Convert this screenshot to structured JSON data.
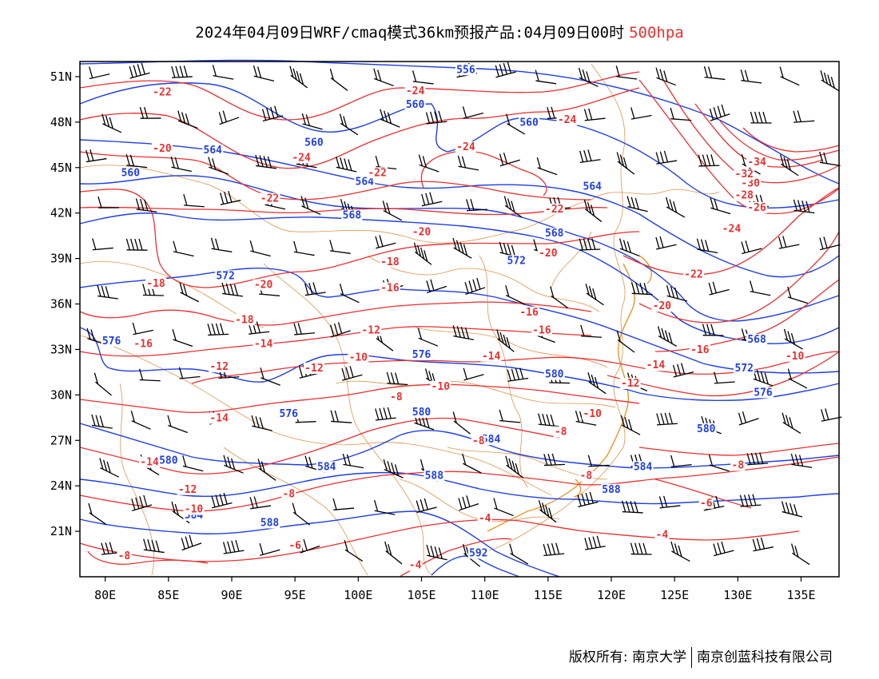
{
  "title": {
    "main": "2024年04月09日WRF/cmaq模式36km预报产品:04月09日00时",
    "level": "500hpa",
    "level_color": "#e83030"
  },
  "map": {
    "lon_range": [
      78,
      138
    ],
    "lat_range": [
      18,
      52
    ],
    "lon_ticks": [
      "80E",
      "85E",
      "90E",
      "95E",
      "100E",
      "105E",
      "110E",
      "115E",
      "120E",
      "125E",
      "130E",
      "135E"
    ],
    "lon_tick_values": [
      80,
      85,
      90,
      95,
      100,
      105,
      110,
      115,
      120,
      125,
      130,
      135
    ],
    "lat_ticks": [
      "21N",
      "24N",
      "27N",
      "30N",
      "33N",
      "36N",
      "39N",
      "42N",
      "45N",
      "48N",
      "51N"
    ],
    "lat_tick_values": [
      21,
      24,
      27,
      30,
      33,
      36,
      39,
      42,
      45,
      48,
      51
    ],
    "colors": {
      "height_contour": "#1f3fe0",
      "temperature_contour": "#e83030",
      "boundary": "#d98a3a",
      "wind_barb": "#000000"
    },
    "height_labels": [
      {
        "text": "556",
        "lon": 108.5,
        "lat": 51.3
      },
      {
        "text": "560",
        "lon": 104.5,
        "lat": 49.0
      },
      {
        "text": "560",
        "lon": 96.5,
        "lat": 46.5
      },
      {
        "text": "560",
        "lon": 113.5,
        "lat": 47.8
      },
      {
        "text": "560",
        "lon": 82.0,
        "lat": 44.5
      },
      {
        "text": "564",
        "lon": 88.5,
        "lat": 46.0
      },
      {
        "text": "564",
        "lon": 100.5,
        "lat": 43.9
      },
      {
        "text": "564",
        "lon": 118.5,
        "lat": 43.6
      },
      {
        "text": "568",
        "lon": 99.5,
        "lat": 41.7
      },
      {
        "text": "568",
        "lon": 115.5,
        "lat": 40.5
      },
      {
        "text": "568",
        "lon": 131.5,
        "lat": 33.5
      },
      {
        "text": "572",
        "lon": 89.5,
        "lat": 37.7
      },
      {
        "text": "572",
        "lon": 112.5,
        "lat": 38.7
      },
      {
        "text": "572",
        "lon": 130.5,
        "lat": 31.6
      },
      {
        "text": "576",
        "lon": 80.5,
        "lat": 33.4
      },
      {
        "text": "576",
        "lon": 94.5,
        "lat": 28.6
      },
      {
        "text": "576",
        "lon": 105.0,
        "lat": 32.5
      },
      {
        "text": "576",
        "lon": 132.0,
        "lat": 30.0
      },
      {
        "text": "580",
        "lon": 85.0,
        "lat": 25.5
      },
      {
        "text": "580",
        "lon": 105.0,
        "lat": 28.7
      },
      {
        "text": "580",
        "lon": 115.5,
        "lat": 31.2
      },
      {
        "text": "580",
        "lon": 127.5,
        "lat": 27.6
      },
      {
        "text": "584",
        "lon": 97.5,
        "lat": 25.1
      },
      {
        "text": "584",
        "lon": 110.5,
        "lat": 26.9
      },
      {
        "text": "584",
        "lon": 87.0,
        "lat": 21.9
      },
      {
        "text": "584",
        "lon": 122.5,
        "lat": 25.1
      },
      {
        "text": "588",
        "lon": 93.0,
        "lat": 21.4
      },
      {
        "text": "588",
        "lon": 106.0,
        "lat": 24.5
      },
      {
        "text": "588",
        "lon": 120.0,
        "lat": 23.6
      },
      {
        "text": "592",
        "lon": 109.5,
        "lat": 19.4
      }
    ],
    "temperature_labels": [
      {
        "text": "-22",
        "lon": 84.5,
        "lat": 49.8
      },
      {
        "text": "-24",
        "lon": 104.5,
        "lat": 49.9
      },
      {
        "text": "-24",
        "lon": 116.5,
        "lat": 48.0
      },
      {
        "text": "-24",
        "lon": 95.5,
        "lat": 45.5
      },
      {
        "text": "-24",
        "lon": 108.5,
        "lat": 46.2
      },
      {
        "text": "-20",
        "lon": 84.5,
        "lat": 46.1
      },
      {
        "text": "-22",
        "lon": 101.5,
        "lat": 44.5
      },
      {
        "text": "-22",
        "lon": 93.0,
        "lat": 42.8
      },
      {
        "text": "-22",
        "lon": 115.5,
        "lat": 42.1
      },
      {
        "text": "-20",
        "lon": 105.0,
        "lat": 40.6
      },
      {
        "text": "-20",
        "lon": 115.0,
        "lat": 39.2
      },
      {
        "text": "-18",
        "lon": 102.5,
        "lat": 38.6
      },
      {
        "text": "-18",
        "lon": 84.0,
        "lat": 37.2
      },
      {
        "text": "-20",
        "lon": 92.5,
        "lat": 37.1
      },
      {
        "text": "-16",
        "lon": 102.5,
        "lat": 36.9
      },
      {
        "text": "-16",
        "lon": 113.5,
        "lat": 35.3
      },
      {
        "text": "-16",
        "lon": 114.5,
        "lat": 34.1
      },
      {
        "text": "-18",
        "lon": 91.0,
        "lat": 34.8
      },
      {
        "text": "-14",
        "lon": 92.5,
        "lat": 33.2
      },
      {
        "text": "-16",
        "lon": 83.0,
        "lat": 33.2
      },
      {
        "text": "-12",
        "lon": 101.0,
        "lat": 34.1
      },
      {
        "text": "-10",
        "lon": 100.0,
        "lat": 32.3
      },
      {
        "text": "-12",
        "lon": 89.0,
        "lat": 31.7
      },
      {
        "text": "-12",
        "lon": 96.5,
        "lat": 31.6
      },
      {
        "text": "-14",
        "lon": 110.5,
        "lat": 32.4
      },
      {
        "text": "-8",
        "lon": 103.0,
        "lat": 29.7
      },
      {
        "text": "-10",
        "lon": 106.5,
        "lat": 30.4
      },
      {
        "text": "-14",
        "lon": 89.0,
        "lat": 28.3
      },
      {
        "text": "-8",
        "lon": 109.5,
        "lat": 26.8
      },
      {
        "text": "-8",
        "lon": 116.0,
        "lat": 27.4
      },
      {
        "text": "-10",
        "lon": 118.5,
        "lat": 28.6
      },
      {
        "text": "-12",
        "lon": 121.5,
        "lat": 30.6
      },
      {
        "text": "-14",
        "lon": 83.5,
        "lat": 25.4
      },
      {
        "text": "-12",
        "lon": 86.5,
        "lat": 23.6
      },
      {
        "text": "-8",
        "lon": 94.5,
        "lat": 23.3
      },
      {
        "text": "-10",
        "lon": 87.0,
        "lat": 22.3
      },
      {
        "text": "-8",
        "lon": 81.5,
        "lat": 19.2
      },
      {
        "text": "-6",
        "lon": 95.0,
        "lat": 19.9
      },
      {
        "text": "-4",
        "lon": 104.5,
        "lat": 18.6
      },
      {
        "text": "-4",
        "lon": 110.0,
        "lat": 21.7
      },
      {
        "text": "-8",
        "lon": 118.0,
        "lat": 24.5
      },
      {
        "text": "-6",
        "lon": 127.5,
        "lat": 22.7
      },
      {
        "text": "-4",
        "lon": 124.0,
        "lat": 20.6
      },
      {
        "text": "-8",
        "lon": 130.0,
        "lat": 25.2
      },
      {
        "text": "-10",
        "lon": 134.5,
        "lat": 32.4
      },
      {
        "text": "-14",
        "lon": 123.5,
        "lat": 31.8
      },
      {
        "text": "-16",
        "lon": 127.0,
        "lat": 32.8
      },
      {
        "text": "-20",
        "lon": 124.0,
        "lat": 35.7
      },
      {
        "text": "-22",
        "lon": 126.5,
        "lat": 37.8
      },
      {
        "text": "-24",
        "lon": 129.5,
        "lat": 40.8
      },
      {
        "text": "-26",
        "lon": 131.5,
        "lat": 42.2
      },
      {
        "text": "-28",
        "lon": 130.5,
        "lat": 43.0
      },
      {
        "text": "-30",
        "lon": 131.0,
        "lat": 43.8
      },
      {
        "text": "-32",
        "lon": 130.5,
        "lat": 44.4
      },
      {
        "text": "-34",
        "lon": 131.5,
        "lat": 45.2
      }
    ]
  },
  "credit": {
    "left": "版权所有: 南京大学",
    "right": "南京创蓝科技有限公司"
  }
}
